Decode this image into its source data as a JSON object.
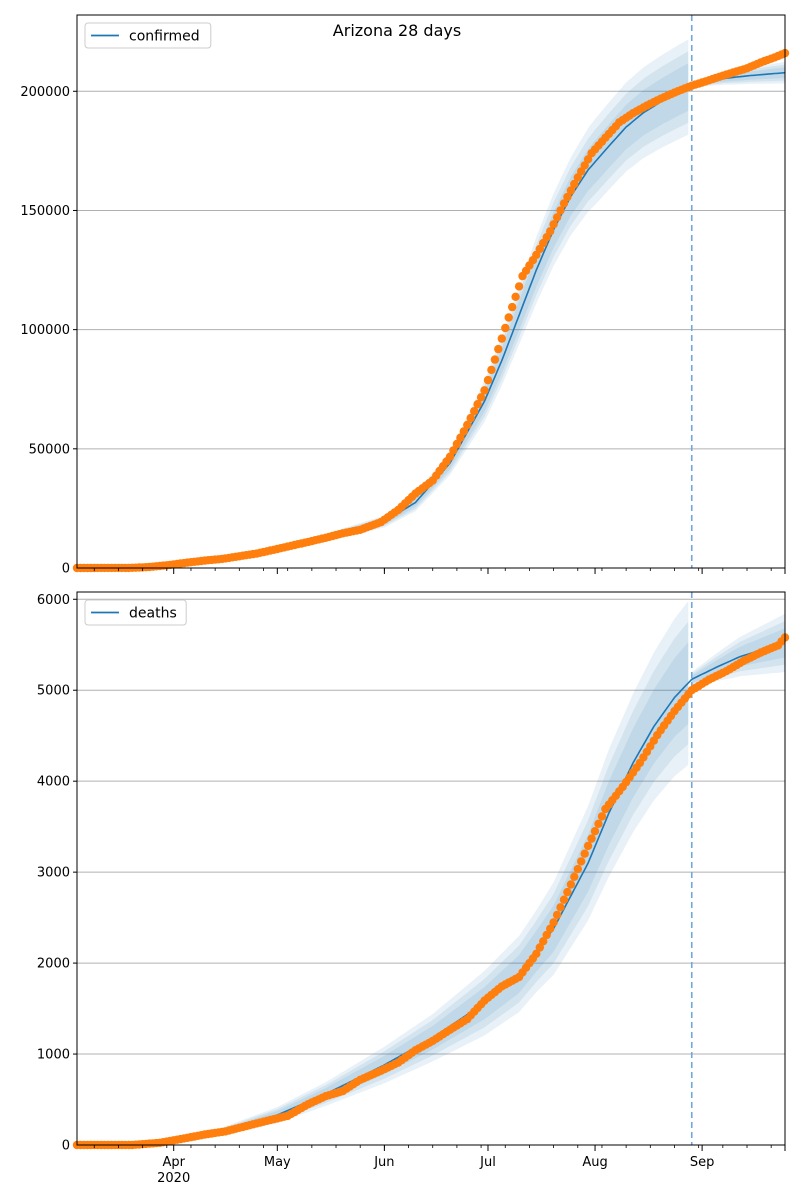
{
  "figure": {
    "title": "Arizona 28 days"
  },
  "colors": {
    "line": "#1f77b4",
    "observed": "#ff7f0e",
    "band": "#1f77b4",
    "grid": "#b0b0b0",
    "cutoff": "#6fa8dc"
  },
  "x_axis": {
    "month_ticks": [
      {
        "date": "2020-04-01",
        "label": "Apr",
        "year_label": "2020"
      },
      {
        "date": "2020-05-01",
        "label": "May"
      },
      {
        "date": "2020-06-01",
        "label": "Jun"
      },
      {
        "date": "2020-07-01",
        "label": "Jul"
      },
      {
        "date": "2020-08-01",
        "label": "Aug"
      },
      {
        "date": "2020-09-01",
        "label": "Sep"
      }
    ]
  },
  "chart_data": [
    {
      "type": "line",
      "title": "Arizona 28 days",
      "legend": {
        "label": "confirmed",
        "placement": "upper-left"
      },
      "xlim": [
        "2020-03-04",
        "2020-09-25"
      ],
      "ylim": [
        0,
        232000
      ],
      "yticks": [
        0,
        50000,
        100000,
        150000,
        200000
      ],
      "grid": "y",
      "forecast_start": "2020-08-29",
      "observed": [
        [
          "2020-03-04",
          0
        ],
        [
          "2020-03-20",
          63
        ],
        [
          "2020-03-25",
          401
        ],
        [
          "2020-03-31",
          1289
        ],
        [
          "2020-04-05",
          2269
        ],
        [
          "2020-04-10",
          3112
        ],
        [
          "2020-04-15",
          3809
        ],
        [
          "2020-04-20",
          4929
        ],
        [
          "2020-04-25",
          6045
        ],
        [
          "2020-04-30",
          7648
        ],
        [
          "2020-05-05",
          9307
        ],
        [
          "2020-05-10",
          10960
        ],
        [
          "2020-05-15",
          12674
        ],
        [
          "2020-05-20",
          14566
        ],
        [
          "2020-05-25",
          16039
        ],
        [
          "2020-05-31",
          19255
        ],
        [
          "2020-06-05",
          24332
        ],
        [
          "2020-06-10",
          31264
        ],
        [
          "2020-06-15",
          36705
        ],
        [
          "2020-06-20",
          46689
        ],
        [
          "2020-06-25",
          59974
        ],
        [
          "2020-06-30",
          74533
        ],
        [
          "2020-07-03",
          87425
        ],
        [
          "2020-07-07",
          105094
        ],
        [
          "2020-07-11",
          122467
        ],
        [
          "2020-07-15",
          131354
        ],
        [
          "2020-07-19",
          141265
        ],
        [
          "2020-07-23",
          152944
        ],
        [
          "2020-07-27",
          163827
        ],
        [
          "2020-07-31",
          174010
        ],
        [
          "2020-08-04",
          180505
        ],
        [
          "2020-08-08",
          186923
        ],
        [
          "2020-08-12",
          190794
        ],
        [
          "2020-08-16",
          194005
        ],
        [
          "2020-08-20",
          196891
        ],
        [
          "2020-08-24",
          199459
        ],
        [
          "2020-08-29",
          202342
        ],
        [
          "2020-09-02",
          204124
        ],
        [
          "2020-09-06",
          206084
        ],
        [
          "2020-09-10",
          207870
        ],
        [
          "2020-09-14",
          209624
        ],
        [
          "2020-09-18",
          212119
        ],
        [
          "2020-09-22",
          214207
        ],
        [
          "2020-09-25",
          216000
        ]
      ],
      "model": [
        [
          "2020-03-04",
          0
        ],
        [
          "2020-03-20",
          200
        ],
        [
          "2020-04-01",
          1500
        ],
        [
          "2020-04-15",
          4000
        ],
        [
          "2020-05-01",
          8000
        ],
        [
          "2020-05-15",
          12800
        ],
        [
          "2020-06-01",
          19500
        ],
        [
          "2020-06-10",
          27500
        ],
        [
          "2020-06-20",
          44000
        ],
        [
          "2020-06-30",
          70000
        ],
        [
          "2020-07-05",
          87000
        ],
        [
          "2020-07-10",
          106000
        ],
        [
          "2020-07-15",
          125000
        ],
        [
          "2020-07-20",
          142000
        ],
        [
          "2020-07-25",
          156000
        ],
        [
          "2020-07-30",
          167000
        ],
        [
          "2020-08-05",
          177000
        ],
        [
          "2020-08-10",
          185000
        ],
        [
          "2020-08-15",
          191000
        ],
        [
          "2020-08-20",
          195500
        ],
        [
          "2020-08-25",
          199500
        ],
        [
          "2020-08-29",
          202500
        ],
        [
          "2020-09-02",
          204000
        ],
        [
          "2020-09-08",
          205500
        ],
        [
          "2020-09-15",
          206600
        ],
        [
          "2020-09-25",
          207800
        ]
      ],
      "band_half_widths": [
        [
          "2020-03-04",
          0
        ],
        [
          "2020-05-01",
          800
        ],
        [
          "2020-06-01",
          2500
        ],
        [
          "2020-06-20",
          5000
        ],
        [
          "2020-07-01",
          9000
        ],
        [
          "2020-07-15",
          14000
        ],
        [
          "2020-08-01",
          18000
        ],
        [
          "2020-08-28",
          20000
        ],
        [
          "2020-08-29",
          1200
        ],
        [
          "2020-09-10",
          3000
        ],
        [
          "2020-09-25",
          4500
        ]
      ]
    },
    {
      "type": "line",
      "legend": {
        "label": "deaths",
        "placement": "upper-left"
      },
      "xlim": [
        "2020-03-04",
        "2020-09-25"
      ],
      "ylim": [
        0,
        6080
      ],
      "yticks": [
        0,
        1000,
        2000,
        3000,
        4000,
        5000,
        6000
      ],
      "grid": "y",
      "forecast_start": "2020-08-29",
      "observed": [
        [
          "2020-03-04",
          0
        ],
        [
          "2020-03-20",
          0
        ],
        [
          "2020-03-28",
          24
        ],
        [
          "2020-04-03",
          65
        ],
        [
          "2020-04-10",
          115
        ],
        [
          "2020-04-16",
          150
        ],
        [
          "2020-04-22",
          208
        ],
        [
          "2020-04-28",
          266
        ],
        [
          "2020-05-04",
          320
        ],
        [
          "2020-05-10",
          450
        ],
        [
          "2020-05-15",
          536
        ],
        [
          "2020-05-20",
          594
        ],
        [
          "2020-05-25",
          717
        ],
        [
          "2020-05-31",
          816
        ],
        [
          "2020-06-05",
          906
        ],
        [
          "2020-06-10",
          1042
        ],
        [
          "2020-06-15",
          1144
        ],
        [
          "2020-06-20",
          1267
        ],
        [
          "2020-06-25",
          1384
        ],
        [
          "2020-06-30",
          1588
        ],
        [
          "2020-07-05",
          1744
        ],
        [
          "2020-07-10",
          1847
        ],
        [
          "2020-07-15",
          2102
        ],
        [
          "2020-07-20",
          2447
        ],
        [
          "2020-07-25",
          2864
        ],
        [
          "2020-07-30",
          3288
        ],
        [
          "2020-08-04",
          3694
        ],
        [
          "2020-08-09",
          3937
        ],
        [
          "2020-08-14",
          4201
        ],
        [
          "2020-08-19",
          4506
        ],
        [
          "2020-08-24",
          4771
        ],
        [
          "2020-08-29",
          5000
        ],
        [
          "2020-09-03",
          5117
        ],
        [
          "2020-09-08",
          5209
        ],
        [
          "2020-09-13",
          5322
        ],
        [
          "2020-09-18",
          5415
        ],
        [
          "2020-09-23",
          5493
        ],
        [
          "2020-09-25",
          5580
        ]
      ],
      "model": [
        [
          "2020-03-04",
          0
        ],
        [
          "2020-03-25",
          10
        ],
        [
          "2020-04-05",
          60
        ],
        [
          "2020-04-15",
          150
        ],
        [
          "2020-05-01",
          330
        ],
        [
          "2020-05-15",
          560
        ],
        [
          "2020-06-01",
          880
        ],
        [
          "2020-06-15",
          1180
        ],
        [
          "2020-06-30",
          1560
        ],
        [
          "2020-07-10",
          1880
        ],
        [
          "2020-07-20",
          2380
        ],
        [
          "2020-07-30",
          3100
        ],
        [
          "2020-08-05",
          3650
        ],
        [
          "2020-08-12",
          4200
        ],
        [
          "2020-08-18",
          4600
        ],
        [
          "2020-08-24",
          4920
        ],
        [
          "2020-08-29",
          5120
        ],
        [
          "2020-09-05",
          5250
        ],
        [
          "2020-09-12",
          5370
        ],
        [
          "2020-09-18",
          5440
        ],
        [
          "2020-09-25",
          5520
        ]
      ],
      "band_half_widths": [
        [
          "2020-03-04",
          0
        ],
        [
          "2020-04-15",
          40
        ],
        [
          "2020-05-15",
          130
        ],
        [
          "2020-06-15",
          260
        ],
        [
          "2020-07-15",
          450
        ],
        [
          "2020-08-05",
          700
        ],
        [
          "2020-08-28",
          900
        ],
        [
          "2020-08-29",
          80
        ],
        [
          "2020-09-10",
          200
        ],
        [
          "2020-09-25",
          320
        ]
      ]
    }
  ]
}
